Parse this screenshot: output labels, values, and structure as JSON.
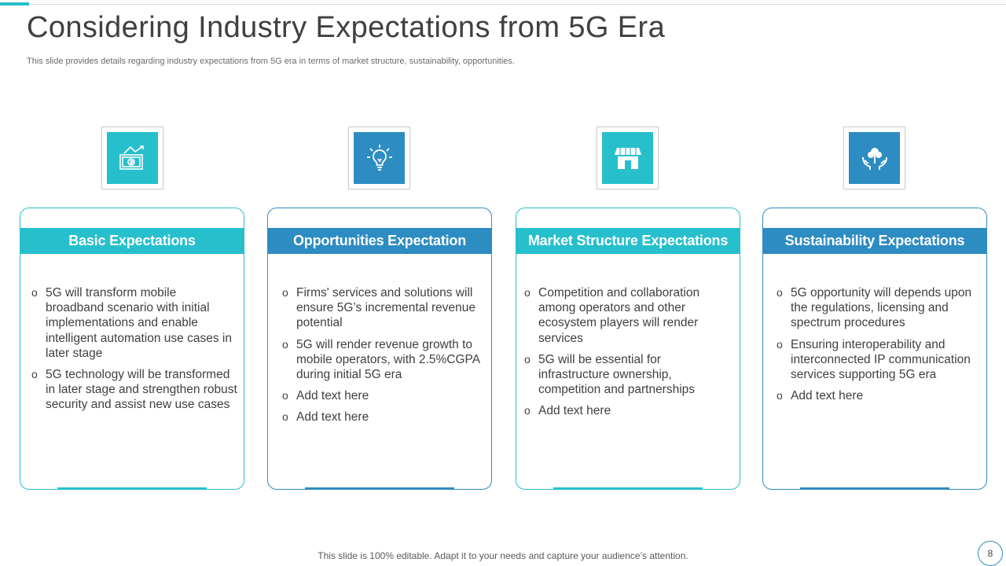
{
  "slide": {
    "title": "Considering Industry Expectations from 5G Era",
    "subtitle": "This slide provides details regarding industry expectations from 5G era in terms of market structure, sustainability, opportunities.",
    "footer": "This slide is 100% editable. Adapt it to your needs and capture your audience’s attention.",
    "page_number": "8"
  },
  "colors": {
    "teal": "#27bfcc",
    "blue": "#2d8cc2",
    "text": "#404040"
  },
  "cards": [
    {
      "heading": "Basic Expectations",
      "icon": "money-growth-icon",
      "bullets": [
        "5G will transform mobile broadband scenario with initial implementations and enable intelligent automation use cases in later stage",
        "5G technology will be transformed in later stage and strengthen robust security and assist new use cases"
      ]
    },
    {
      "heading": "Opportunities Expectation",
      "icon": "lightbulb-icon",
      "bullets": [
        "Firms' services and solutions will ensure 5G’s incremental revenue potential",
        "5G will render revenue growth to mobile operators, with 2.5%CGPA during initial 5G era",
        "Add text here",
        "Add text here"
      ]
    },
    {
      "heading": "Market Structure Expectations",
      "icon": "storefront-icon",
      "bullets": [
        "Competition and collaboration among operators and other ecosystem players will render services",
        "5G will be essential for infrastructure ownership, competition and partnerships",
        "Add text here"
      ]
    },
    {
      "heading": "Sustainability Expectations",
      "icon": "hands-tree-icon",
      "bullets": [
        "5G opportunity will depends upon the regulations, licensing and spectrum procedures",
        "Ensuring interoperability and interconnected IP communication services supporting 5G era",
        "Add text here"
      ]
    }
  ]
}
